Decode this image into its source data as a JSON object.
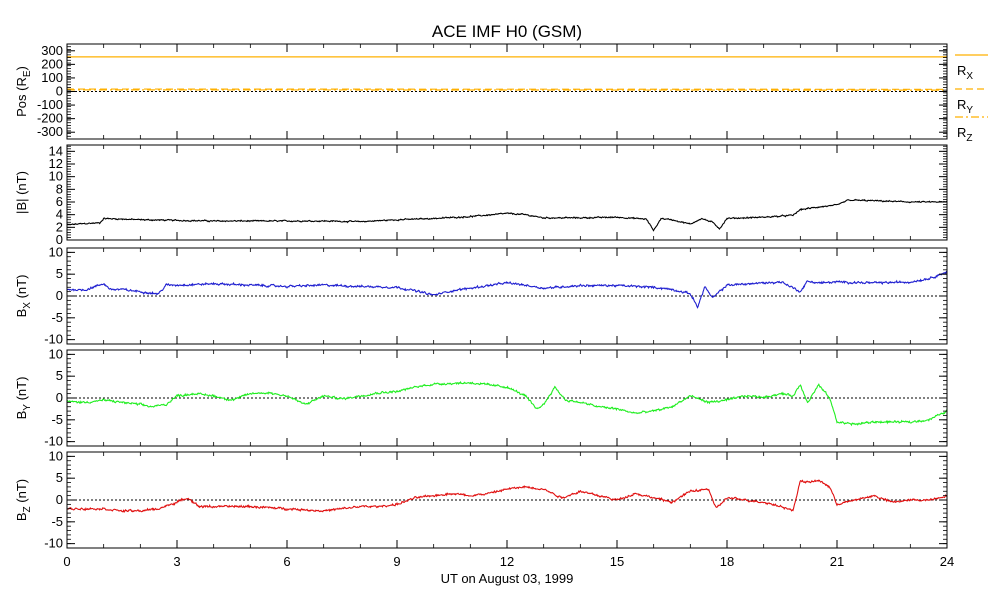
{
  "chart_data": {
    "type": "line",
    "title": "ACE IMF H0 (GSM)",
    "xlabel": "UT on August 03, 1999",
    "xlim": [
      0,
      24
    ],
    "xticks": [
      0,
      3,
      6,
      9,
      12,
      15,
      18,
      21,
      24
    ],
    "xtick_labels": [
      "0",
      "3",
      "6",
      "9",
      "12",
      "15",
      "18",
      "21",
      "24"
    ],
    "panels": [
      {
        "id": "pos",
        "ylabel_main": "Pos (R",
        "ylabel_sub": "E",
        "ylabel_end": ")",
        "ylim": [
          -350,
          350
        ],
        "yticks": [
          -300,
          -200,
          -100,
          0,
          100,
          200,
          300
        ],
        "ytick_labels": [
          "-300",
          "-200",
          "-100",
          "0",
          "100",
          "200",
          "300"
        ],
        "zero_line": true,
        "series": [
          {
            "name": "R",
            "sub": "X",
            "color": "#ffb000",
            "style": "solid",
            "x": [
              0,
              24
            ],
            "y": [
              255,
              255
            ]
          },
          {
            "name": "R",
            "sub": "Y",
            "color": "#ffb000",
            "style": "dashed",
            "x": [
              0,
              24
            ],
            "y": [
              18,
              16
            ]
          },
          {
            "name": "R",
            "sub": "Z",
            "color": "#ffb000",
            "style": "dashdot",
            "x": [
              0,
              24
            ],
            "y": [
              12,
              10
            ]
          }
        ]
      },
      {
        "id": "btotal",
        "ylabel_main": "|B| (nT)",
        "ylabel_sub": "",
        "ylabel_end": "",
        "ylim": [
          0,
          15
        ],
        "yticks": [
          0,
          2,
          4,
          6,
          8,
          10,
          12,
          14
        ],
        "ytick_labels": [
          "0",
          "2",
          "4",
          "6",
          "8",
          "10",
          "12",
          "14"
        ],
        "zero_line": false,
        "series": [
          {
            "name": "|B|",
            "color": "#000000",
            "x": [
              0,
              0.5,
              0.9,
              1.0,
              2,
              3,
              4,
              5,
              6,
              7,
              8,
              9,
              10,
              11,
              12,
              12.5,
              13,
              14,
              15,
              15.8,
              16.0,
              16.2,
              16.5,
              17,
              17.3,
              17.6,
              17.8,
              18,
              19,
              19.8,
              20.0,
              20.5,
              21,
              21.3,
              22,
              23,
              24
            ],
            "y": [
              2.4,
              2.6,
              2.7,
              3.4,
              3.2,
              3.1,
              3.0,
              3.0,
              3.0,
              3.0,
              2.9,
              3.2,
              3.4,
              3.7,
              4.2,
              4.0,
              3.5,
              3.5,
              3.6,
              3.3,
              1.5,
              3.4,
              3.2,
              2.5,
              3.4,
              2.8,
              1.8,
              3.4,
              3.6,
              3.9,
              4.8,
              5.2,
              5.5,
              6.3,
              6.2,
              6.0,
              6.0
            ]
          }
        ]
      },
      {
        "id": "bx",
        "ylabel_main": "B",
        "ylabel_sub": "X",
        "ylabel_end": " (nT)",
        "ylim": [
          -11,
          11
        ],
        "yticks": [
          -10,
          -5,
          0,
          5,
          10
        ],
        "ytick_labels": [
          "-10",
          "-5",
          "0",
          "5",
          "10"
        ],
        "zero_line": true,
        "series": [
          {
            "name": "BX",
            "color": "#2020d0",
            "x": [
              0,
              0.5,
              1.0,
              1.2,
              1.5,
              2,
              2.5,
              2.7,
              3,
              4,
              5,
              6,
              7,
              8,
              9,
              9.5,
              10.0,
              10.5,
              11,
              12,
              12.5,
              13,
              14,
              15,
              16,
              16.5,
              17,
              17.2,
              17.4,
              17.6,
              18,
              19,
              19.5,
              20.0,
              20.2,
              20.5,
              21,
              22,
              23,
              23.5,
              24
            ],
            "y": [
              1.5,
              1.4,
              2.8,
              1.5,
              1.5,
              1.0,
              0.5,
              2.5,
              2.5,
              2.8,
              2.5,
              2.2,
              2.5,
              2.2,
              2.0,
              1.2,
              0.2,
              1.2,
              1.8,
              3.0,
              2.5,
              1.8,
              2.4,
              2.4,
              2.0,
              1.5,
              0.5,
              -2.5,
              2.2,
              -0.5,
              2.5,
              3.0,
              3.2,
              1.0,
              3.4,
              3.0,
              3.2,
              3.0,
              3.2,
              4.0,
              5.5
            ]
          }
        ]
      },
      {
        "id": "by",
        "ylabel_main": "B",
        "ylabel_sub": "Y",
        "ylabel_end": " (nT)",
        "ylim": [
          -11,
          11
        ],
        "yticks": [
          -10,
          -5,
          0,
          5,
          10
        ],
        "ytick_labels": [
          "-10",
          "-5",
          "0",
          "5",
          "10"
        ],
        "zero_line": true,
        "series": [
          {
            "name": "BY",
            "color": "#20ee20",
            "x": [
              0,
              0.5,
              1.0,
              1.5,
              2,
              2.3,
              2.7,
              3.0,
              3.5,
              4,
              4.5,
              5,
              5.5,
              6,
              6.5,
              7,
              7.5,
              8,
              8.5,
              9,
              9.5,
              10,
              11,
              11.5,
              12,
              12.5,
              12.8,
              13.0,
              13.3,
              13.6,
              14,
              14.5,
              15,
              15.5,
              16,
              16.5,
              17,
              17.5,
              18,
              18.5,
              19,
              19.5,
              19.8,
              20.0,
              20.2,
              20.5,
              20.8,
              21.0,
              21.5,
              22,
              23,
              23.5,
              24
            ],
            "y": [
              -0.8,
              -1.0,
              -0.5,
              -1.0,
              -1.5,
              -2.0,
              -1.5,
              0.5,
              1.0,
              0.5,
              -0.5,
              1.0,
              1.2,
              0.5,
              -1.5,
              0.5,
              -0.2,
              0.5,
              1.2,
              1.5,
              2.5,
              3.2,
              3.5,
              3.0,
              2.5,
              0.5,
              -2.5,
              -1.5,
              2.5,
              -0.5,
              -1.0,
              -2.0,
              -2.5,
              -3.5,
              -3.0,
              -2.0,
              0.5,
              -1.0,
              -0.5,
              0.5,
              0.2,
              1.0,
              0.5,
              3.0,
              -1.0,
              3.0,
              0.0,
              -5.5,
              -6.0,
              -5.5,
              -5.5,
              -5.0,
              -3.0
            ]
          }
        ]
      },
      {
        "id": "bz",
        "ylabel_main": "B",
        "ylabel_sub": "Z",
        "ylabel_end": " (nT)",
        "ylim": [
          -11,
          11
        ],
        "yticks": [
          -10,
          -5,
          0,
          5,
          10
        ],
        "ytick_labels": [
          "-10",
          "-5",
          "0",
          "5",
          "10"
        ],
        "zero_line": true,
        "series": [
          {
            "name": "BZ",
            "color": "#e01010",
            "x": [
              0,
              1,
              1.5,
              2,
              2.5,
              3,
              3.3,
              3.6,
              4,
              5,
              6,
              7,
              8,
              8.5,
              9,
              9.5,
              10,
              10.5,
              11,
              11.5,
              12,
              12.5,
              13,
              13.5,
              14,
              14.5,
              15,
              15.5,
              16,
              16.5,
              17,
              17.5,
              17.7,
              18,
              18.5,
              19,
              19.5,
              19.8,
              20.0,
              20.2,
              20.5,
              20.8,
              21.0,
              21.5,
              22,
              22.5,
              23,
              23.5,
              24
            ],
            "y": [
              -2.0,
              -2.0,
              -2.5,
              -2.5,
              -2.0,
              -0.5,
              0.5,
              -1.5,
              -1.5,
              -1.5,
              -2.0,
              -2.5,
              -1.5,
              -1.5,
              -1.0,
              0.5,
              1.0,
              1.5,
              1.0,
              1.5,
              2.5,
              3.0,
              2.5,
              0.5,
              2.0,
              1.0,
              0.0,
              1.5,
              0.5,
              -0.5,
              2.0,
              2.5,
              -2.0,
              0.5,
              0.0,
              -0.5,
              -1.5,
              -2.5,
              4.5,
              4.0,
              4.5,
              3.0,
              -1.0,
              0.0,
              1.0,
              -0.5,
              0.0,
              0.0,
              1.0
            ]
          }
        ]
      }
    ]
  }
}
